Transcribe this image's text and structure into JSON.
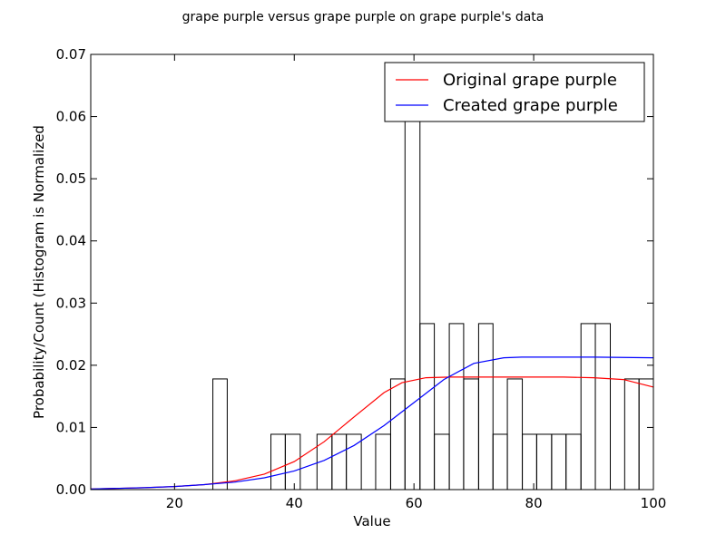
{
  "chart_data": {
    "type": "histogram+line",
    "title": "grape purple versus grape purple on grape purple's data",
    "xlabel": "Value",
    "ylabel": "Probability/Count (Histogram is Normalized",
    "xlim": [
      6,
      100
    ],
    "ylim": [
      0,
      0.07
    ],
    "xticks": [
      "20",
      "40",
      "60",
      "80",
      "100"
    ],
    "yticks": [
      "0.00",
      "0.01",
      "0.02",
      "0.03",
      "0.04",
      "0.05",
      "0.06",
      "0.07"
    ],
    "grid": false,
    "legend_position": "top-right",
    "histogram": {
      "bins": [
        {
          "x0": 26.4,
          "x1": 28.8,
          "value": 0.0178
        },
        {
          "x0": 36.1,
          "x1": 38.5,
          "value": 0.0089
        },
        {
          "x0": 38.5,
          "x1": 41.0,
          "value": 0.0089
        },
        {
          "x0": 43.8,
          "x1": 46.3,
          "value": 0.0089
        },
        {
          "x0": 46.3,
          "x1": 48.7,
          "value": 0.0089
        },
        {
          "x0": 48.7,
          "x1": 51.2,
          "value": 0.0089
        },
        {
          "x0": 53.6,
          "x1": 56.1,
          "value": 0.0089
        },
        {
          "x0": 56.1,
          "x1": 58.5,
          "value": 0.0178
        },
        {
          "x0": 58.5,
          "x1": 61.0,
          "value": 0.0622
        },
        {
          "x0": 61.0,
          "x1": 63.4,
          "value": 0.0267
        },
        {
          "x0": 63.4,
          "x1": 65.9,
          "value": 0.0089
        },
        {
          "x0": 65.9,
          "x1": 68.3,
          "value": 0.0267
        },
        {
          "x0": 68.3,
          "x1": 70.8,
          "value": 0.0178
        },
        {
          "x0": 70.8,
          "x1": 73.2,
          "value": 0.0267
        },
        {
          "x0": 73.2,
          "x1": 75.6,
          "value": 0.0089
        },
        {
          "x0": 75.6,
          "x1": 78.1,
          "value": 0.0178
        },
        {
          "x0": 78.1,
          "x1": 80.5,
          "value": 0.0089
        },
        {
          "x0": 80.5,
          "x1": 83.0,
          "value": 0.0089
        },
        {
          "x0": 83.0,
          "x1": 85.4,
          "value": 0.0089
        },
        {
          "x0": 85.4,
          "x1": 87.9,
          "value": 0.0089
        },
        {
          "x0": 87.9,
          "x1": 90.3,
          "value": 0.0267
        },
        {
          "x0": 90.3,
          "x1": 92.8,
          "value": 0.0267
        },
        {
          "x0": 95.2,
          "x1": 97.6,
          "value": 0.0178
        },
        {
          "x0": 97.6,
          "x1": 100.0,
          "value": 0.0178
        }
      ]
    },
    "series": [
      {
        "name": "Original grape purple",
        "color": "#ff0000",
        "x": [
          6,
          15,
          20,
          25,
          30,
          35,
          40,
          45,
          50,
          55,
          58,
          62,
          66,
          70,
          75,
          80,
          85,
          90,
          95,
          100
        ],
        "y": [
          0.0001,
          0.0003,
          0.0005,
          0.0008,
          0.0014,
          0.0025,
          0.0045,
          0.0077,
          0.0117,
          0.0156,
          0.0172,
          0.018,
          0.0181,
          0.0181,
          0.0181,
          0.0181,
          0.0181,
          0.018,
          0.0177,
          0.0165
        ]
      },
      {
        "name": "Created grape purple",
        "color": "#0000ff",
        "x": [
          6,
          15,
          20,
          25,
          30,
          35,
          40,
          45,
          50,
          55,
          60,
          65,
          70,
          75,
          78,
          80,
          90,
          100
        ],
        "y": [
          0.0001,
          0.0003,
          0.0005,
          0.0008,
          0.0012,
          0.0019,
          0.003,
          0.0047,
          0.0071,
          0.0103,
          0.014,
          0.0177,
          0.0203,
          0.0212,
          0.0213,
          0.0213,
          0.0213,
          0.0212
        ]
      }
    ]
  }
}
